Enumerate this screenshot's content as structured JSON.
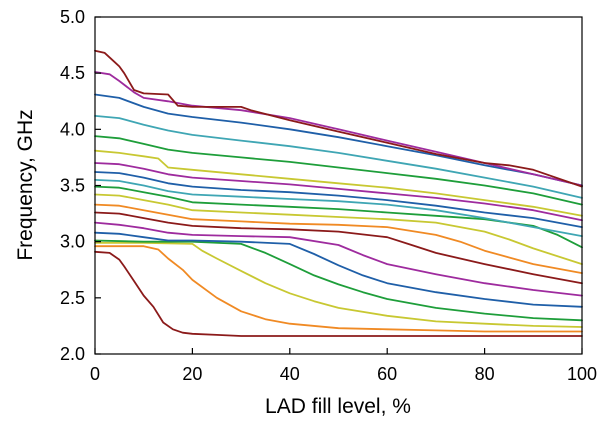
{
  "chart_data": {
    "type": "line",
    "title": "",
    "xlabel": "LAD fill level, %",
    "ylabel": "Frequency, GHz",
    "xlim": [
      0,
      100
    ],
    "ylim": [
      2.0,
      5.0
    ],
    "xticks": [
      0,
      20,
      40,
      60,
      80,
      100
    ],
    "yticks": [
      2.0,
      2.5,
      3.0,
      3.5,
      4.0,
      4.5,
      5.0
    ],
    "xtick_labels": [
      "0",
      "20",
      "40",
      "60",
      "80",
      "100"
    ],
    "ytick_labels": [
      "2.0",
      "2.5",
      "3.0",
      "3.5",
      "4.0",
      "4.5",
      "5.0"
    ],
    "grid": false,
    "legend": "none",
    "series": [
      {
        "color": "#8B1A1A",
        "x": [
          0,
          3,
          5,
          6,
          8,
          10,
          12,
          14,
          16,
          18,
          20,
          25,
          30,
          40,
          50,
          60,
          70,
          80,
          90,
          95,
          100
        ],
        "y": [
          2.91,
          2.9,
          2.84,
          2.78,
          2.65,
          2.52,
          2.42,
          2.28,
          2.22,
          2.19,
          2.18,
          2.17,
          2.16,
          2.16,
          2.16,
          2.16,
          2.16,
          2.16,
          2.16,
          2.16,
          2.16
        ]
      },
      {
        "color": "#F08A24",
        "x": [
          0,
          5,
          10,
          13,
          15,
          18,
          20,
          25,
          30,
          35,
          40,
          50,
          60,
          70,
          80,
          90,
          100
        ],
        "y": [
          2.96,
          2.96,
          2.96,
          2.93,
          2.85,
          2.75,
          2.66,
          2.5,
          2.38,
          2.31,
          2.27,
          2.23,
          2.22,
          2.21,
          2.2,
          2.2,
          2.2
        ]
      },
      {
        "color": "#C8C832",
        "x": [
          0,
          10,
          20,
          22,
          25,
          30,
          35,
          40,
          45,
          50,
          60,
          70,
          80,
          90,
          100
        ],
        "y": [
          2.99,
          2.99,
          2.98,
          2.92,
          2.85,
          2.74,
          2.63,
          2.54,
          2.47,
          2.41,
          2.34,
          2.29,
          2.27,
          2.25,
          2.24
        ]
      },
      {
        "color": "#1E9E3A",
        "x": [
          0,
          10,
          20,
          30,
          35,
          40,
          45,
          50,
          55,
          60,
          70,
          80,
          90,
          100
        ],
        "y": [
          3.01,
          3.0,
          3.0,
          2.98,
          2.9,
          2.8,
          2.7,
          2.62,
          2.55,
          2.49,
          2.41,
          2.36,
          2.32,
          2.3
        ]
      },
      {
        "color": "#1F5FA8",
        "x": [
          0,
          5,
          10,
          15,
          20,
          30,
          40,
          45,
          50,
          55,
          60,
          70,
          80,
          90,
          100
        ],
        "y": [
          3.08,
          3.07,
          3.04,
          3.01,
          3.01,
          3.0,
          2.98,
          2.89,
          2.79,
          2.7,
          2.63,
          2.55,
          2.49,
          2.44,
          2.42
        ]
      },
      {
        "color": "#9E2B9E",
        "x": [
          0,
          5,
          10,
          15,
          20,
          30,
          40,
          50,
          55,
          60,
          70,
          80,
          90,
          100
        ],
        "y": [
          3.17,
          3.15,
          3.12,
          3.08,
          3.06,
          3.05,
          3.04,
          2.97,
          2.88,
          2.8,
          2.71,
          2.63,
          2.57,
          2.52
        ]
      },
      {
        "color": "#8B1A1A",
        "x": [
          0,
          5,
          10,
          15,
          20,
          30,
          40,
          50,
          60,
          65,
          70,
          80,
          90,
          100
        ],
        "y": [
          3.26,
          3.25,
          3.21,
          3.17,
          3.14,
          3.12,
          3.11,
          3.09,
          3.04,
          2.97,
          2.9,
          2.8,
          2.71,
          2.63
        ]
      },
      {
        "color": "#F08A24",
        "x": [
          0,
          5,
          10,
          15,
          20,
          30,
          40,
          50,
          60,
          70,
          75,
          80,
          90,
          100
        ],
        "y": [
          3.33,
          3.32,
          3.28,
          3.24,
          3.2,
          3.18,
          3.16,
          3.15,
          3.13,
          3.06,
          3.0,
          2.92,
          2.8,
          2.72
        ]
      },
      {
        "color": "#C8C832",
        "x": [
          0,
          5,
          10,
          15,
          20,
          30,
          40,
          50,
          60,
          70,
          80,
          85,
          90,
          100
        ],
        "y": [
          3.42,
          3.41,
          3.37,
          3.33,
          3.28,
          3.26,
          3.24,
          3.22,
          3.2,
          3.17,
          3.09,
          3.02,
          2.94,
          2.8
        ]
      },
      {
        "color": "#1E9E3A",
        "x": [
          0,
          5,
          10,
          15,
          20,
          30,
          40,
          50,
          60,
          70,
          80,
          90,
          95,
          100
        ],
        "y": [
          3.49,
          3.48,
          3.44,
          3.4,
          3.35,
          3.33,
          3.31,
          3.29,
          3.26,
          3.23,
          3.2,
          3.14,
          3.06,
          2.95
        ]
      },
      {
        "color": "#3FA6B4",
        "x": [
          0,
          5,
          10,
          15,
          20,
          30,
          40,
          50,
          60,
          70,
          80,
          90,
          100
        ],
        "y": [
          3.55,
          3.54,
          3.5,
          3.45,
          3.42,
          3.4,
          3.38,
          3.36,
          3.33,
          3.28,
          3.21,
          3.13,
          3.05
        ]
      },
      {
        "color": "#1F5FA8",
        "x": [
          0,
          5,
          10,
          15,
          20,
          30,
          40,
          50,
          60,
          70,
          80,
          90,
          100
        ],
        "y": [
          3.62,
          3.61,
          3.57,
          3.52,
          3.49,
          3.46,
          3.44,
          3.41,
          3.37,
          3.32,
          3.26,
          3.21,
          3.13
        ]
      },
      {
        "color": "#9E2B9E",
        "x": [
          0,
          5,
          10,
          15,
          20,
          30,
          40,
          50,
          60,
          70,
          80,
          90,
          100
        ],
        "y": [
          3.7,
          3.69,
          3.65,
          3.6,
          3.57,
          3.54,
          3.51,
          3.47,
          3.43,
          3.39,
          3.34,
          3.28,
          3.19
        ]
      },
      {
        "color": "#C8C832",
        "x": [
          0,
          5,
          10,
          13,
          15,
          20,
          30,
          40,
          50,
          60,
          70,
          80,
          90,
          100
        ],
        "y": [
          3.81,
          3.79,
          3.76,
          3.74,
          3.66,
          3.64,
          3.6,
          3.56,
          3.52,
          3.48,
          3.43,
          3.37,
          3.31,
          3.23
        ]
      },
      {
        "color": "#1E9E3A",
        "x": [
          0,
          5,
          10,
          15,
          20,
          30,
          40,
          50,
          60,
          70,
          80,
          90,
          100
        ],
        "y": [
          3.94,
          3.92,
          3.87,
          3.82,
          3.79,
          3.75,
          3.71,
          3.66,
          3.61,
          3.56,
          3.5,
          3.43,
          3.33
        ]
      },
      {
        "color": "#3FA6B4",
        "x": [
          0,
          5,
          10,
          15,
          20,
          30,
          40,
          50,
          60,
          70,
          80,
          90,
          100
        ],
        "y": [
          4.12,
          4.1,
          4.04,
          3.99,
          3.95,
          3.9,
          3.85,
          3.79,
          3.72,
          3.65,
          3.57,
          3.49,
          3.39
        ]
      },
      {
        "color": "#1F5FA8",
        "x": [
          0,
          5,
          10,
          15,
          20,
          30,
          40,
          50,
          60,
          70,
          80,
          90,
          100
        ],
        "y": [
          4.31,
          4.28,
          4.2,
          4.14,
          4.11,
          4.06,
          4.0,
          3.93,
          3.85,
          3.77,
          3.68,
          3.6,
          3.5
        ]
      },
      {
        "color": "#9E2B9E",
        "x": [
          0,
          3,
          5,
          8,
          10,
          15,
          20,
          30,
          40,
          50,
          60,
          70,
          80,
          90,
          100
        ],
        "y": [
          4.51,
          4.49,
          4.43,
          4.33,
          4.28,
          4.25,
          4.21,
          4.17,
          4.1,
          4.0,
          3.9,
          3.8,
          3.7,
          3.6,
          3.5
        ]
      },
      {
        "color": "#8B1A1A",
        "x": [
          0,
          2,
          4,
          5,
          6,
          8,
          10,
          15,
          17,
          20,
          30,
          32,
          40,
          50,
          60,
          70,
          80,
          85,
          90,
          100
        ],
        "y": [
          4.7,
          4.68,
          4.6,
          4.56,
          4.5,
          4.35,
          4.32,
          4.31,
          4.21,
          4.2,
          4.2,
          4.17,
          4.08,
          3.98,
          3.88,
          3.78,
          3.7,
          3.68,
          3.64,
          3.49
        ]
      }
    ]
  }
}
